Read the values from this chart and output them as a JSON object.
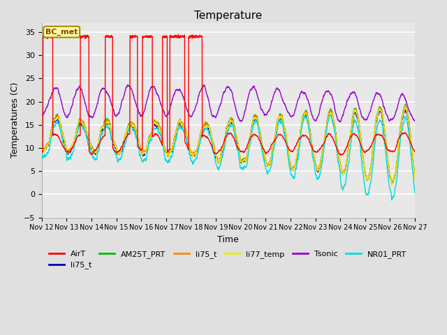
{
  "title": "Temperature",
  "xlabel": "Time",
  "ylabel": "Temperatures (C)",
  "ylim": [
    -5,
    37
  ],
  "yticks": [
    -5,
    0,
    5,
    10,
    15,
    20,
    25,
    30,
    35
  ],
  "x_start_day": 12,
  "x_end_day": 27,
  "x_tick_days": [
    12,
    13,
    14,
    15,
    16,
    17,
    18,
    19,
    20,
    21,
    22,
    23,
    24,
    25,
    26,
    27
  ],
  "annotation_text": "BC_met",
  "airT_pulses": [
    [
      12.05,
      12.45
    ],
    [
      13.55,
      13.9
    ],
    [
      14.55,
      14.85
    ],
    [
      15.55,
      15.85
    ],
    [
      16.05,
      16.45
    ],
    [
      16.85,
      17.05
    ],
    [
      17.15,
      17.75
    ],
    [
      17.9,
      18.45
    ]
  ],
  "colors": {
    "AirT": "#ff0000",
    "li75_t_blue": "#0000bb",
    "AM25T_PRT": "#00bb00",
    "li75_t_orange": "#ff8800",
    "li77_temp": "#eeee00",
    "Tsonic": "#9900cc",
    "NR01_PRT": "#00dddd"
  },
  "legend_labels_row1": [
    "AirT",
    "li75_t",
    "AM25T_PRT",
    "li75_t",
    "li77_temp",
    "Tsonic"
  ],
  "legend_colors_row1": [
    "#ff0000",
    "#0000bb",
    "#00bb00",
    "#ff8800",
    "#eeee00",
    "#9900cc"
  ],
  "legend_labels_row2": [
    "NR01_PRT"
  ],
  "legend_colors_row2": [
    "#00dddd"
  ],
  "background_color": "#e0e0e0",
  "plot_bg_color": "#e8e8e8",
  "grid_color": "#ffffff",
  "title_fontsize": 11,
  "axis_fontsize": 9,
  "tick_fontsize": 8
}
